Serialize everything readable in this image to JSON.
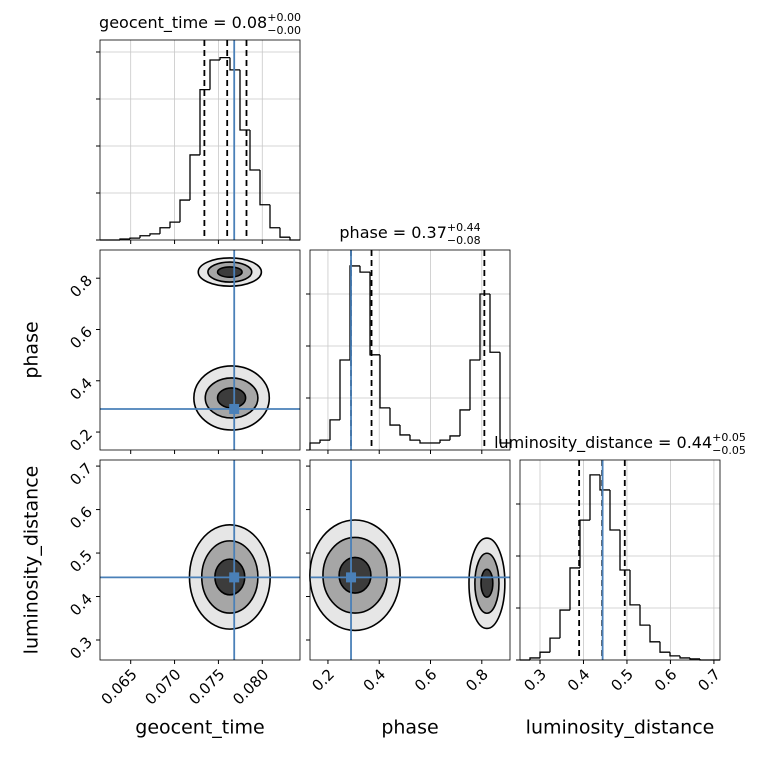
{
  "chart_data": {
    "type": "corner",
    "truth_color": "#4a80b8",
    "hist_color": "#000000",
    "contour_color": "#000000",
    "level_fills": [
      "#e6e6e6",
      "#a6a6a6",
      "#3c3c3c"
    ],
    "grid": true,
    "parameters": [
      {
        "name": "geocent_time",
        "title": "geocent_time = 0.08",
        "title_plus": "+0.00",
        "title_minus": "−0.00",
        "lim": [
          0.0615,
          0.0843
        ],
        "ticks": [
          {
            "value": 0.065,
            "label": "0.065"
          },
          {
            "value": 0.07,
            "label": "0.070"
          },
          {
            "value": 0.075,
            "label": "0.075"
          },
          {
            "value": 0.08,
            "label": "0.080"
          }
        ],
        "truth": 0.0768,
        "quantiles": [
          0.0734,
          0.076,
          0.0782
        ],
        "bins": [
          0.0615,
          0.06264,
          0.06378,
          0.06492,
          0.06606,
          0.0672,
          0.06834,
          0.06948,
          0.07062,
          0.07176,
          0.0729,
          0.07404,
          0.07518,
          0.07632,
          0.07746,
          0.0786,
          0.07974,
          0.08088,
          0.08202,
          0.08316,
          0.0843
        ],
        "counts": [
          0,
          0,
          20,
          40,
          90,
          130,
          260,
          380,
          850,
          1810,
          3200,
          3830,
          3880,
          3620,
          2340,
          1490,
          750,
          260,
          60,
          0
        ],
        "hist_ylim": [
          0,
          4255
        ],
        "hist_yticks": [
          0,
          1000,
          2000,
          3000,
          4000
        ]
      },
      {
        "name": "phase",
        "title": "phase = 0.37",
        "title_plus": "+0.44",
        "title_minus": "−0.08",
        "lim": [
          0.13,
          0.91
        ],
        "ticks": [
          0.2,
          0.4,
          0.6,
          0.8
        ],
        "truth": 0.29,
        "quantiles": [
          0.29,
          0.37,
          0.81
        ],
        "bins": [
          0.13,
          0.169,
          0.208,
          0.247,
          0.286,
          0.325,
          0.364,
          0.403,
          0.442,
          0.481,
          0.52,
          0.559,
          0.598,
          0.637,
          0.676,
          0.715,
          0.754,
          0.793,
          0.832,
          0.871,
          0.91
        ],
        "counts": [
          135,
          190,
          580,
          1730,
          3540,
          3420,
          1830,
          810,
          480,
          290,
          190,
          135,
          135,
          190,
          270,
          770,
          1730,
          3000,
          1880,
          135
        ],
        "hist_ylim": [
          0,
          3846
        ],
        "hist_yticks": [
          0,
          1000,
          2000,
          3000
        ]
      },
      {
        "name": "luminosity_distance",
        "title": "luminosity_distance = 0.44",
        "title_plus": "+0.05",
        "title_minus": "−0.05",
        "lim": [
          0.254,
          0.714
        ],
        "ticks": [
          0.3,
          0.4,
          0.5,
          0.6,
          0.7
        ],
        "truth": 0.444,
        "quantiles": [
          0.39,
          0.443,
          0.495
        ],
        "bins": [
          0.254,
          0.277,
          0.3,
          0.323,
          0.346,
          0.369,
          0.392,
          0.415,
          0.438,
          0.461,
          0.484,
          0.507,
          0.53,
          0.553,
          0.576,
          0.599,
          0.622,
          0.645,
          0.668,
          0.691,
          0.714
        ],
        "counts": [
          0,
          40,
          150,
          420,
          960,
          1770,
          2690,
          3560,
          3270,
          2500,
          1730,
          1060,
          670,
          350,
          150,
          80,
          40,
          20,
          0,
          0
        ],
        "hist_ylim": [
          0,
          3846
        ],
        "hist_yticks": [
          0,
          1000,
          2000,
          3000
        ]
      }
    ],
    "lower_panels": [
      [
        {
          "blobs": [
            [
              {
                "x": 0.0763,
                "y": 0.824,
                "rx": 0.0036,
                "ry": 0.055
              },
              {
                "x": 0.0763,
                "y": 0.824,
                "rx": 0.0025,
                "ry": 0.039
              },
              {
                "x": 0.0763,
                "y": 0.824,
                "rx": 0.0014,
                "ry": 0.02
              }
            ],
            [
              {
                "x": 0.0765,
                "y": 0.333,
                "rx": 0.0043,
                "ry": 0.125
              },
              {
                "x": 0.0765,
                "y": 0.333,
                "rx": 0.003,
                "ry": 0.078
              },
              {
                "x": 0.0765,
                "y": 0.333,
                "rx": 0.0016,
                "ry": 0.039
              }
            ]
          ]
        }
      ],
      [
        {
          "blobs": [
            [
              {
                "x": 0.0763,
                "y": 0.445,
                "rx": 0.0046,
                "ry": 0.12
              },
              {
                "x": 0.0763,
                "y": 0.445,
                "rx": 0.0032,
                "ry": 0.083
              },
              {
                "x": 0.0763,
                "y": 0.445,
                "rx": 0.0017,
                "ry": 0.041
              }
            ]
          ]
        },
        {
          "blobs": [
            [
              {
                "x": 0.3055,
                "y": 0.449,
                "rx": 0.176,
                "ry": 0.127
              },
              {
                "x": 0.3055,
                "y": 0.449,
                "rx": 0.125,
                "ry": 0.087
              },
              {
                "x": 0.3055,
                "y": 0.449,
                "rx": 0.062,
                "ry": 0.041
              }
            ],
            [
              {
                "x": 0.82,
                "y": 0.4305,
                "rx": 0.07,
                "ry": 0.104
              },
              {
                "x": 0.82,
                "y": 0.4305,
                "rx": 0.047,
                "ry": 0.069
              },
              {
                "x": 0.82,
                "y": 0.4305,
                "rx": 0.023,
                "ry": 0.032
              }
            ]
          ]
        }
      ]
    ]
  }
}
